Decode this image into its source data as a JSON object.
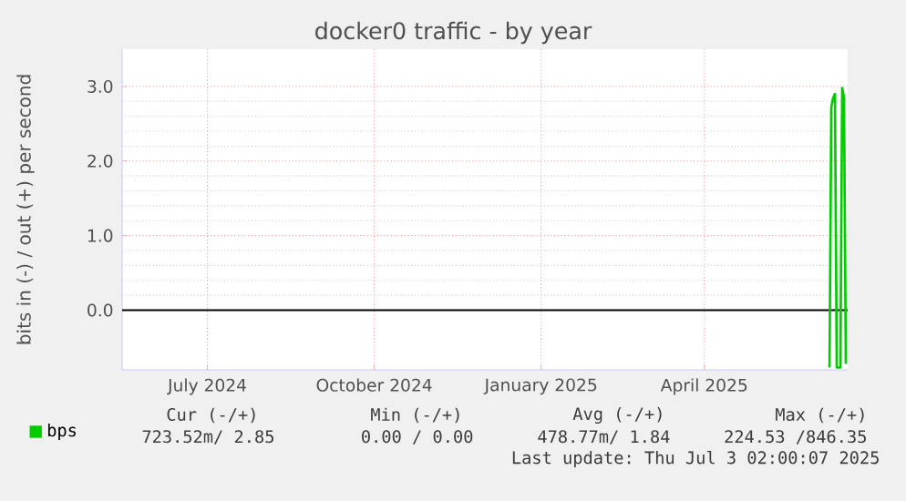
{
  "chart_data": {
    "type": "line",
    "title": "docker0 traffic - by year",
    "ylabel": "bits in (-) / out (+) per second",
    "xlim": [
      "2024-05-29",
      "2025-07-03"
    ],
    "xticks": [
      {
        "value": "2024-07-15",
        "label": "July 2024"
      },
      {
        "value": "2024-10-15",
        "label": "October 2024"
      },
      {
        "value": "2025-01-15",
        "label": "January 2025"
      },
      {
        "value": "2025-04-15",
        "label": "April 2025"
      }
    ],
    "ylim": [
      -0.8,
      3.5
    ],
    "yticks": [
      {
        "value": 0,
        "label": "0.0"
      },
      {
        "value": 1,
        "label": "1.0"
      },
      {
        "value": 2,
        "label": "2.0"
      },
      {
        "value": 3,
        "label": "3.0"
      }
    ],
    "grid": true,
    "legend": "bottom left",
    "series": [
      {
        "name": "bps",
        "color": "#00cc00",
        "x": [
          "2025-06-23",
          "2025-06-24",
          "2025-06-25",
          "2025-06-26",
          "2025-06-27",
          "2025-06-28",
          "2025-06-29",
          "2025-06-30",
          "2025-07-01",
          "2025-07-02"
        ],
        "values": [
          -0.77,
          2.72,
          2.85,
          2.9,
          -0.77,
          -0.77,
          -0.77,
          2.98,
          2.85,
          -0.72
        ]
      }
    ],
    "ref_lines": [
      {
        "axis": "y",
        "value": 0,
        "color": "#000000"
      }
    ],
    "annotations": [
      "Cur (-/+)",
      "Min (-/+)",
      "Avg (-/+)",
      "Max (-/+)",
      "723.52m/ 2.85",
      "0.00 / 0.00",
      "478.77m/ 1.84",
      "224.53 /846.35",
      "Last update: Thu Jul 3 02:00:07 2025"
    ]
  }
}
